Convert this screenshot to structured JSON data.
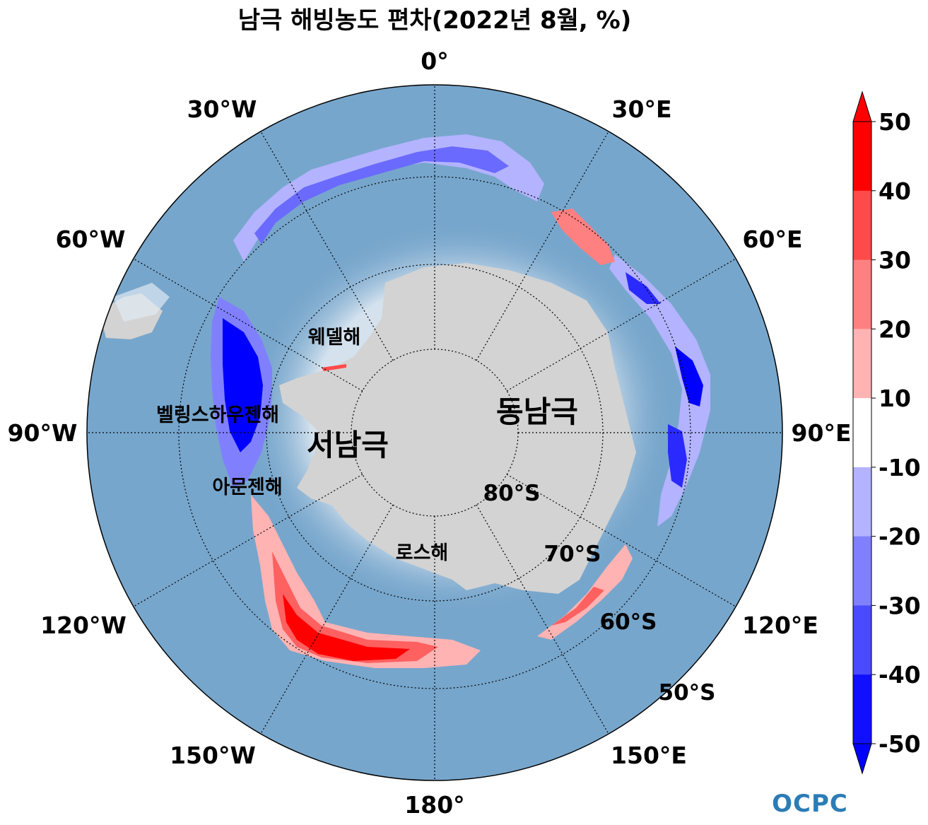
{
  "title": "남극 해빙농도 편차(2022년 8월, %)",
  "longitude_labels": [
    "0°",
    "30°E",
    "60°E",
    "90°E",
    "120°E",
    "150°E",
    "180°",
    "150°W",
    "120°W",
    "90°W",
    "60°W",
    "30°W"
  ],
  "latitude_labels": [
    "80°S",
    "70°S",
    "60°S",
    "50°S"
  ],
  "regions": {
    "east_antarctica": "동남극",
    "west_antarctica": "서남극",
    "weddell_sea": "웨델해",
    "bellingshausen_sea": "벨링스하우젠해",
    "amundsen_sea": "아문젠해",
    "ross_sea": "로스해"
  },
  "colorbar": {
    "ticks": [
      "50",
      "40",
      "30",
      "20",
      "10",
      "-10",
      "-20",
      "-30",
      "-40",
      "-50"
    ],
    "colors": [
      "#ff0000",
      "#ff4a4a",
      "#ff8080",
      "#ffb3b3",
      "#ffffff",
      "#b3b3ff",
      "#8080ff",
      "#4a4aff",
      "#1010ff"
    ],
    "extend_max_color": "#ff0000",
    "extend_min_color": "#0000ff"
  },
  "colors": {
    "ocean": "#77a6cc",
    "land": "#d3d3d3",
    "ice_shelf_glow": "#dfe9f2"
  },
  "logo": "OCPC"
}
